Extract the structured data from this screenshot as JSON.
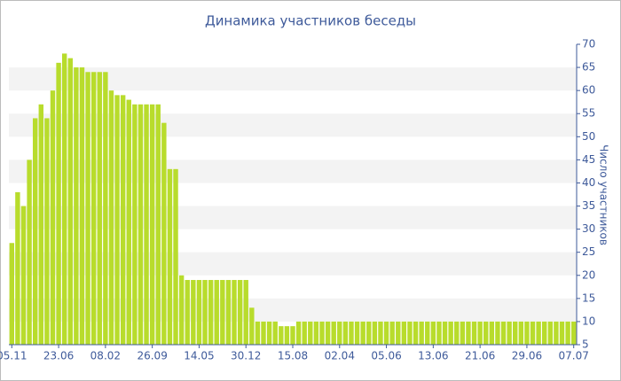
{
  "chart_data": {
    "type": "bar",
    "title": "Динамика участников беседы",
    "y_label": "Число участников",
    "categories": [
      "05.11",
      null,
      null,
      null,
      null,
      null,
      null,
      null,
      "23.06",
      null,
      null,
      null,
      null,
      null,
      null,
      null,
      "08.02",
      null,
      null,
      null,
      null,
      null,
      null,
      null,
      "26.09",
      null,
      null,
      null,
      null,
      null,
      null,
      null,
      "14.05",
      null,
      null,
      null,
      null,
      null,
      null,
      null,
      "30.12",
      null,
      null,
      null,
      null,
      null,
      null,
      null,
      "15.08",
      null,
      null,
      null,
      null,
      null,
      null,
      null,
      "02.04",
      null,
      null,
      null,
      null,
      null,
      null,
      null,
      "05.06",
      null,
      null,
      null,
      null,
      null,
      null,
      null,
      "13.06",
      null,
      null,
      null,
      null,
      null,
      null,
      null,
      "21.06",
      null,
      null,
      null,
      null,
      null,
      null,
      null,
      "29.06",
      null,
      null,
      null,
      null,
      null,
      null,
      null,
      "07.07"
    ],
    "values": [
      27,
      38,
      35,
      45,
      54,
      57,
      54,
      60,
      66,
      68,
      67,
      65,
      65,
      64,
      64,
      64,
      64,
      60,
      59,
      59,
      58,
      57,
      57,
      57,
      57,
      57,
      53,
      43,
      43,
      20,
      19,
      19,
      19,
      19,
      19,
      19,
      19,
      19,
      19,
      19,
      19,
      13,
      10,
      10,
      10,
      10,
      9,
      9,
      9,
      10,
      10,
      10,
      10,
      10,
      10,
      10,
      10,
      10,
      10,
      10,
      10,
      10,
      10,
      10,
      10,
      10,
      10,
      10,
      10,
      10,
      10,
      10,
      10,
      10,
      10,
      10,
      10,
      10,
      10,
      10,
      10,
      10,
      10,
      10,
      10,
      10,
      10,
      10,
      10,
      10,
      10,
      10,
      10,
      10,
      10,
      10,
      10
    ],
    "color": "#b8dc2c",
    "ylim": [
      5,
      70
    ],
    "yticks": [
      5,
      10,
      15,
      20,
      25,
      30,
      35,
      40,
      45,
      50,
      55,
      60,
      65,
      70
    ],
    "y_axis_side": "right",
    "grid": "bands"
  }
}
